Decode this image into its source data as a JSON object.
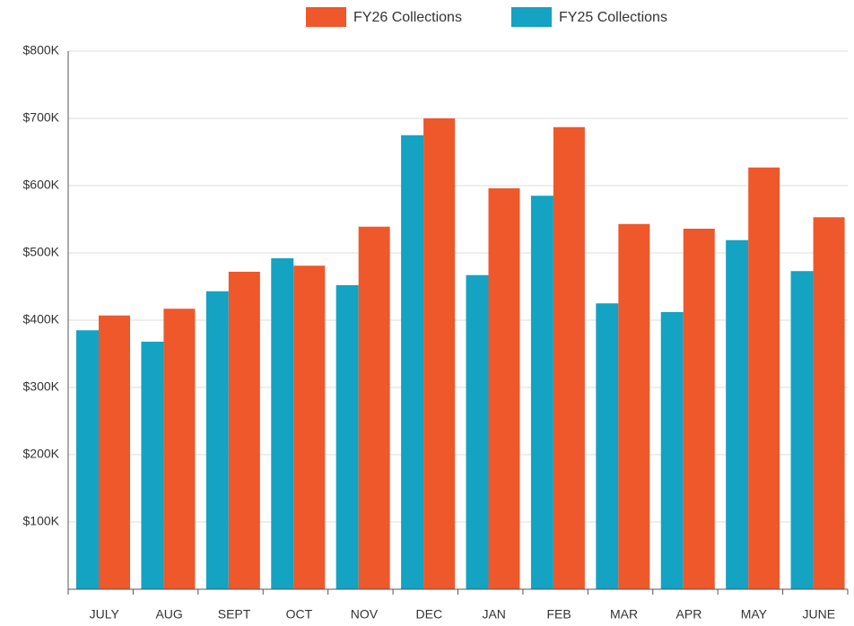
{
  "chart_data": {
    "type": "bar",
    "categories": [
      "JULY",
      "AUG",
      "SEPT",
      "OCT",
      "NOV",
      "DEC",
      "JAN",
      "FEB",
      "MAR",
      "APR",
      "MAY",
      "JUNE"
    ],
    "series": [
      {
        "name": "FY26 Collections",
        "color": "#ee582a",
        "values": [
          407000,
          417000,
          472000,
          481000,
          539000,
          700000,
          596000,
          687000,
          543000,
          536000,
          627000,
          553000
        ]
      },
      {
        "name": "FY25 Collections",
        "color": "#14a3c2",
        "values": [
          385000,
          368000,
          443000,
          492000,
          452000,
          675000,
          467000,
          585000,
          425000,
          412000,
          519000,
          473000
        ]
      }
    ],
    "ylim": [
      0,
      800000
    ],
    "yticks": [
      {
        "value": 0,
        "label": ""
      },
      {
        "value": 100000,
        "label": "$100K"
      },
      {
        "value": 200000,
        "label": "$200K"
      },
      {
        "value": 300000,
        "label": "$300K"
      },
      {
        "value": 400000,
        "label": "$400K"
      },
      {
        "value": 500000,
        "label": "$500K"
      },
      {
        "value": 600000,
        "label": "$600K"
      },
      {
        "value": 700000,
        "label": "$700K"
      },
      {
        "value": 800000,
        "label": "$800K"
      }
    ],
    "grid": true,
    "legend": "top"
  }
}
